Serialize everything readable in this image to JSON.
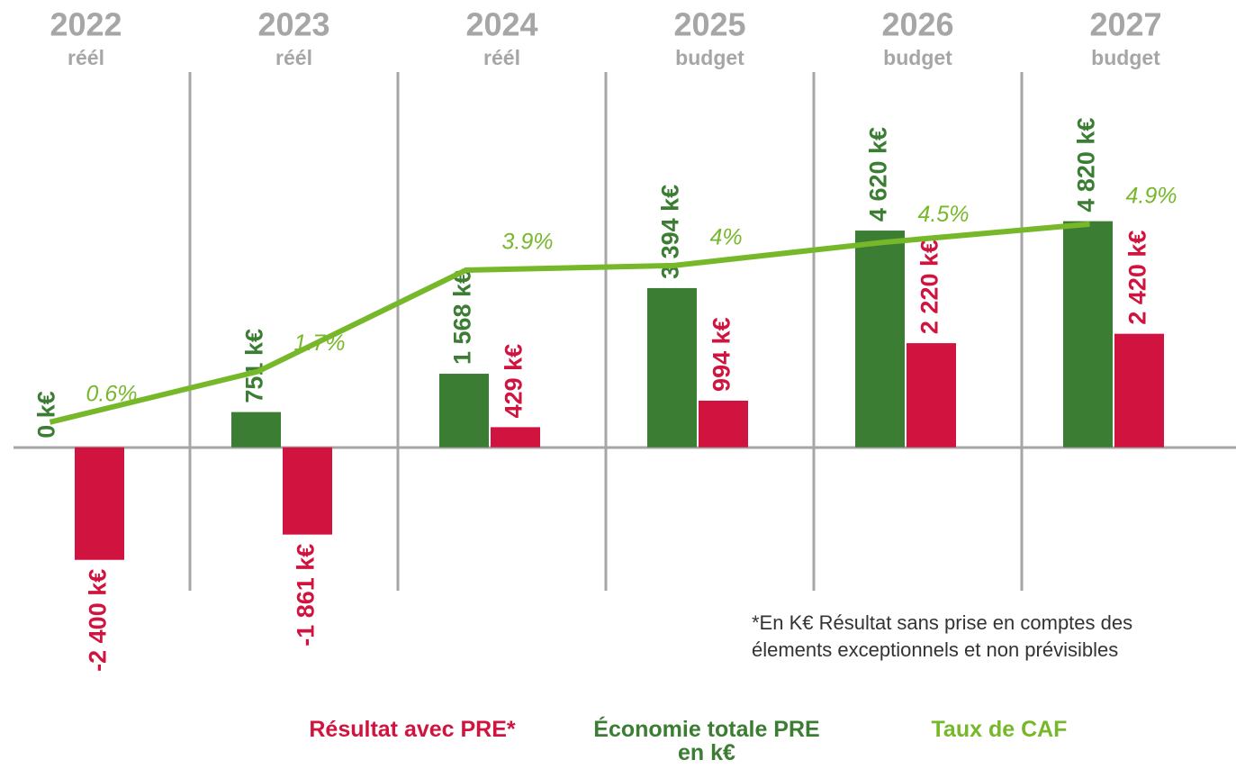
{
  "chart_data": {
    "type": "bar",
    "categories": [
      "2022",
      "2023",
      "2024",
      "2025",
      "2026",
      "2027"
    ],
    "subcategories": [
      "réél",
      "réél",
      "réél",
      "budget",
      "budget",
      "budget"
    ],
    "ylim": [
      -3000,
      8000
    ],
    "y2lim": [
      -3,
      8.2
    ],
    "series": [
      {
        "name": "Économie totale PRE en k€",
        "color": "#3a7d33",
        "values": [
          0,
          751,
          1568,
          3394,
          4620,
          4820
        ],
        "value_labels": [
          "0 k€",
          "751 k€",
          "1 568 k€",
          "3 394 k€",
          "4 620 k€",
          "4 820 k€"
        ]
      },
      {
        "name": "Résultat avec PRE*",
        "color": "#d0143f",
        "values": [
          -2400,
          -1861,
          429,
          994,
          2220,
          2420
        ],
        "value_labels": [
          "-2 400 k€",
          "-1 861 k€",
          "429 k€",
          "994 k€",
          "2 220 k€",
          "2 420 k€"
        ]
      },
      {
        "name": "Taux de CAF",
        "type": "line",
        "axis": "y2",
        "color": "#76b82a",
        "values": [
          0.6,
          1.7,
          3.9,
          4,
          4.5,
          4.9
        ],
        "value_labels": [
          "0.6%",
          "1.7%",
          "3.9%",
          "4%",
          "4.5%",
          "4.9%"
        ]
      }
    ],
    "note": [
      "*En K€ Résultat sans prise en comptes des",
      "élements exceptionnels et non prévisibles"
    ]
  }
}
